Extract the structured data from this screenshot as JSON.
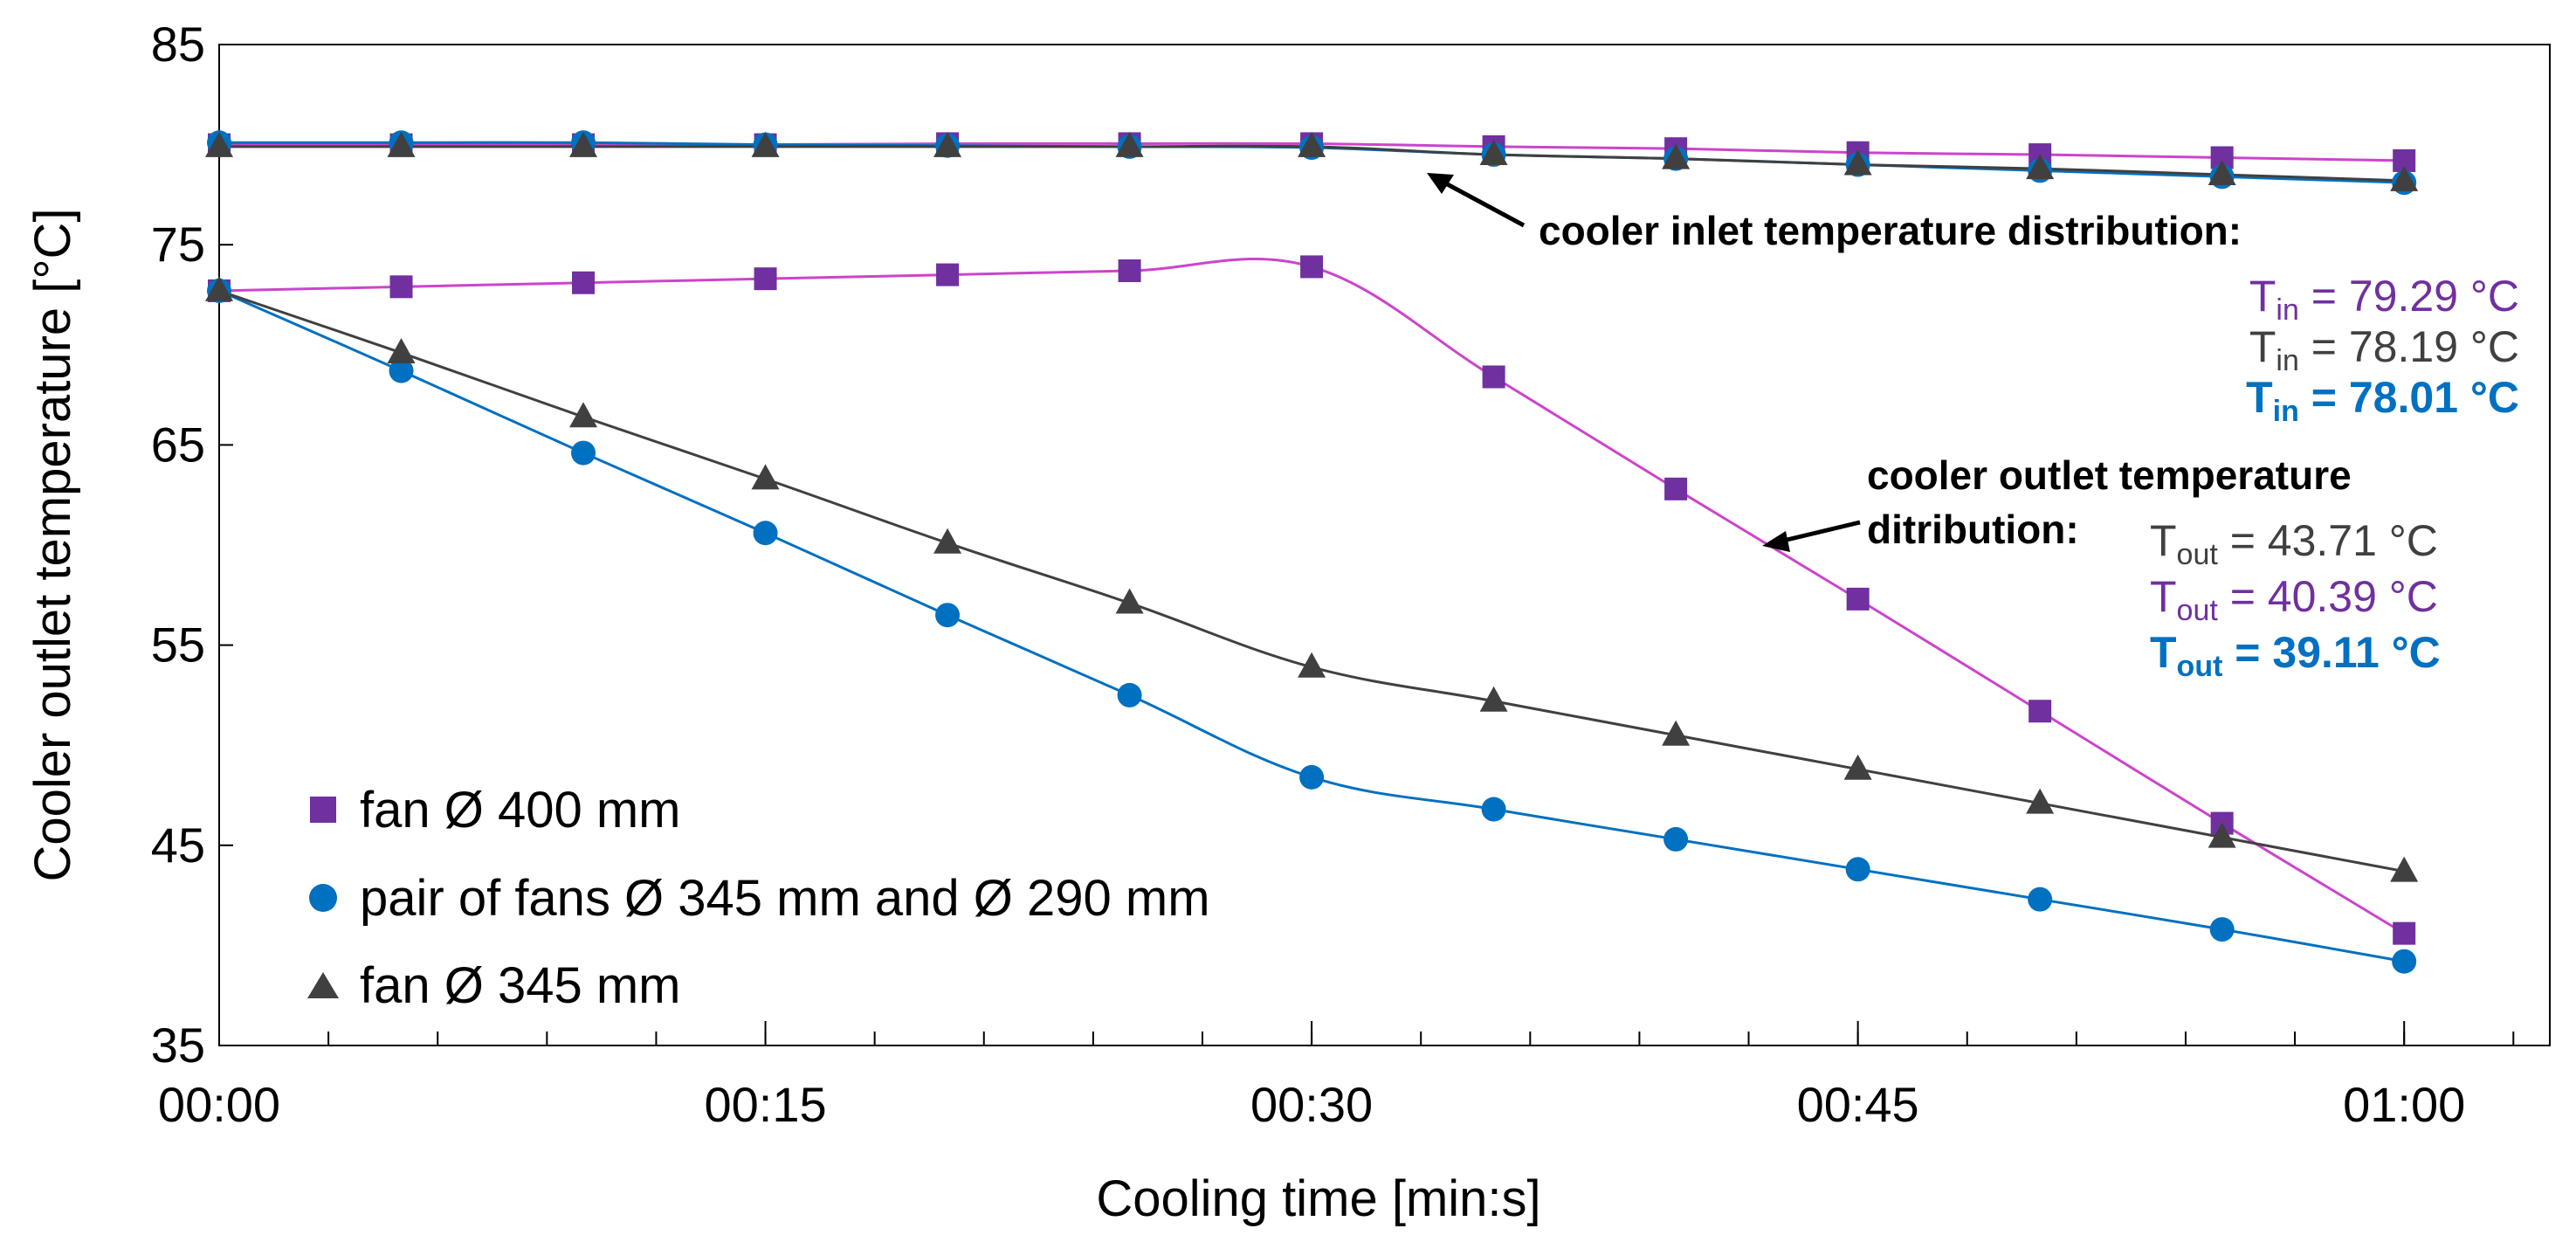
{
  "chart_data": {
    "type": "line",
    "title": "",
    "xlabel": "Cooling time [min:s]",
    "ylabel": "Cooler outlet temperature [°C]",
    "xlim": [
      0,
      64
    ],
    "ylim": [
      35,
      85
    ],
    "x_ticks": [
      {
        "value": 0,
        "label": "00:00"
      },
      {
        "value": 15,
        "label": "00:15"
      },
      {
        "value": 30,
        "label": "00:30"
      },
      {
        "value": 45,
        "label": "00:45"
      },
      {
        "value": 60,
        "label": "01:00"
      }
    ],
    "y_ticks": [
      {
        "value": 35,
        "label": "35"
      },
      {
        "value": 45,
        "label": "45"
      },
      {
        "value": 55,
        "label": "55"
      },
      {
        "value": 65,
        "label": "65"
      },
      {
        "value": 75,
        "label": "75"
      },
      {
        "value": 85,
        "label": "85"
      }
    ],
    "minor_x_step": 3,
    "x": [
      0,
      5,
      10,
      15,
      20,
      25,
      30,
      35,
      40,
      45,
      50,
      55,
      60
    ],
    "series": [
      {
        "name": "fan Ø 400 mm",
        "marker": "square",
        "color": "#7030A0",
        "line_color": "#CC44CC",
        "outlet": [
          72.7,
          72.9,
          73.1,
          73.3,
          73.5,
          73.7,
          73.9,
          68.4,
          62.8,
          57.3,
          51.7,
          46.1,
          40.6
        ],
        "inlet": [
          80.0,
          80.0,
          80.0,
          80.0,
          80.05,
          80.05,
          80.05,
          79.9,
          79.8,
          79.6,
          79.5,
          79.35,
          79.2
        ]
      },
      {
        "name": "pair of fans Ø 345 mm and Ø 290 mm",
        "marker": "circle",
        "color": "#0070C0",
        "line_color": "#0070C0",
        "outlet": [
          72.7,
          68.7,
          64.6,
          60.6,
          56.5,
          52.5,
          48.4,
          46.8,
          45.3,
          43.8,
          42.3,
          40.8,
          39.2
        ],
        "inlet": [
          80.1,
          80.1,
          80.1,
          80.0,
          79.95,
          79.9,
          79.85,
          79.5,
          79.3,
          79.0,
          78.7,
          78.4,
          78.1
        ]
      },
      {
        "name": "fan Ø 345 mm",
        "marker": "triangle",
        "color": "#404040",
        "line_color": "#404040",
        "outlet": [
          72.7,
          69.6,
          66.4,
          63.3,
          60.1,
          57.1,
          53.9,
          52.2,
          50.5,
          48.8,
          47.1,
          45.4,
          43.7
        ],
        "inlet": [
          79.9,
          79.9,
          79.9,
          79.9,
          79.9,
          79.9,
          79.9,
          79.5,
          79.3,
          79.0,
          78.8,
          78.5,
          78.2
        ]
      }
    ],
    "annotations": {
      "inlet": {
        "title": "cooler inlet temperature distribution:",
        "values": [
          {
            "sym": "T",
            "sub": "in",
            "text": " = 79.29 °C",
            "color": "#7030A0"
          },
          {
            "sym": "T",
            "sub": "in",
            "text": " = 78.19 °C",
            "color": "#404040"
          },
          {
            "sym": "T",
            "sub": "in",
            "text": " = 78.01 °C",
            "color": "#0070C0"
          }
        ]
      },
      "outlet": {
        "title_line1": "cooler outlet temperature",
        "title_line2": "ditribution:",
        "values": [
          {
            "sym": "T",
            "sub": "out",
            "text": " = 43.71 °C",
            "color": "#404040"
          },
          {
            "sym": "T",
            "sub": "out",
            "text": " = 40.39 °C",
            "color": "#7030A0"
          },
          {
            "sym": "T",
            "sub": "out",
            "text": " = 39.11 °C",
            "color": "#0070C0"
          }
        ]
      }
    }
  }
}
